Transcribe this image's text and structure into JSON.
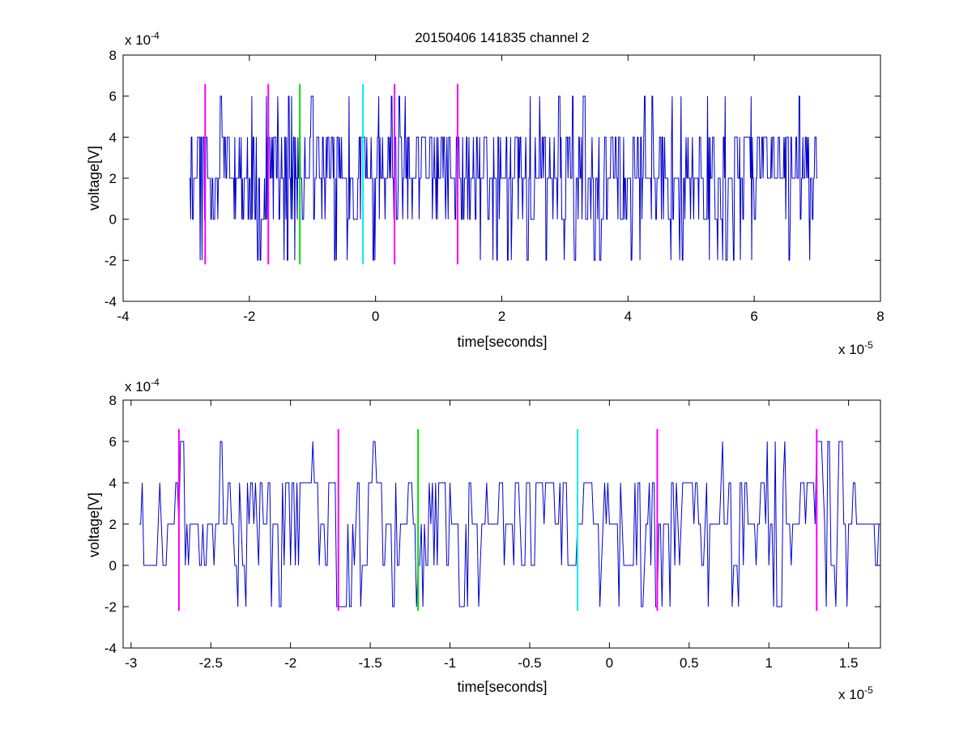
{
  "title": "20150406 141835 channel 2",
  "colors": {
    "signal": "#0000cc",
    "marker_magenta": "#ff00ff",
    "marker_green": "#00dd00",
    "marker_cyan": "#00eeee",
    "axis": "#000000"
  },
  "chart_data": [
    {
      "type": "line",
      "title": "20150406 141835 channel 2",
      "xlabel": "time[seconds]",
      "ylabel": "voltage[V]",
      "x_multiplier": "x 10",
      "x_exponent": "-5",
      "y_multiplier": "x 10",
      "y_exponent": "-4",
      "xlim": [
        -4,
        8
      ],
      "ylim": [
        -4,
        8
      ],
      "xticks": [
        -4,
        -2,
        0,
        2,
        4,
        6,
        8
      ],
      "xtick_labels": [
        "-4",
        "-2",
        "0",
        "2",
        "4",
        "6",
        "8"
      ],
      "yticks": [
        -4,
        -2,
        0,
        2,
        4,
        6,
        8
      ],
      "ytick_labels": [
        "-4",
        "-2",
        "0",
        "2",
        "4",
        "6",
        "8"
      ],
      "signal": {
        "x_range": [
          -2.95,
          7.0
        ],
        "step": 0.01,
        "levels": [
          -2,
          0,
          2,
          4,
          6
        ],
        "seed": 11,
        "weights": [
          0.06,
          0.2,
          0.42,
          0.28,
          0.04
        ]
      },
      "markers": [
        {
          "x": -2.7,
          "color": "magenta",
          "y_range": [
            -2.2,
            6.6
          ]
        },
        {
          "x": -1.7,
          "color": "magenta",
          "y_range": [
            -2.2,
            6.6
          ]
        },
        {
          "x": -1.2,
          "color": "green",
          "y_range": [
            -2.2,
            6.6
          ]
        },
        {
          "x": -0.2,
          "color": "cyan",
          "y_range": [
            -2.2,
            6.6
          ]
        },
        {
          "x": 0.3,
          "color": "magenta",
          "y_range": [
            -2.2,
            6.6
          ]
        },
        {
          "x": 1.3,
          "color": "magenta",
          "y_range": [
            -2.2,
            6.6
          ]
        }
      ]
    },
    {
      "type": "line",
      "title": "",
      "xlabel": "time[seconds]",
      "ylabel": "voltage[V]",
      "x_multiplier": "x 10",
      "x_exponent": "-5",
      "y_multiplier": "x 10",
      "y_exponent": "-4",
      "xlim": [
        -3.05,
        1.7
      ],
      "ylim": [
        -4,
        8
      ],
      "xticks": [
        -3,
        -2.5,
        -2,
        -1.5,
        -1,
        -0.5,
        0,
        0.5,
        1,
        1.5
      ],
      "xtick_labels": [
        "-3",
        "-2.5",
        "-2",
        "-1.5",
        "-1",
        "-0.5",
        "0",
        "0.5",
        "1",
        "1.5"
      ],
      "yticks": [
        -4,
        -2,
        0,
        2,
        4,
        6,
        8
      ],
      "ytick_labels": [
        "-4",
        "-2",
        "0",
        "2",
        "4",
        "6",
        "8"
      ],
      "signal": {
        "x_range": [
          -2.95,
          1.7
        ],
        "step": 0.01,
        "levels": [
          -2,
          0,
          2,
          4,
          6
        ],
        "seed": 23,
        "weights": [
          0.06,
          0.2,
          0.42,
          0.28,
          0.04
        ]
      },
      "markers": [
        {
          "x": -2.7,
          "color": "magenta",
          "y_range": [
            -2.2,
            6.6
          ]
        },
        {
          "x": -1.7,
          "color": "magenta",
          "y_range": [
            -2.2,
            6.6
          ]
        },
        {
          "x": -1.2,
          "color": "green",
          "y_range": [
            -2.2,
            6.6
          ]
        },
        {
          "x": -0.2,
          "color": "cyan",
          "y_range": [
            -2.2,
            6.6
          ]
        },
        {
          "x": 0.3,
          "color": "magenta",
          "y_range": [
            -2.2,
            6.6
          ]
        },
        {
          "x": 1.3,
          "color": "magenta",
          "y_range": [
            -2.2,
            6.6
          ]
        }
      ]
    }
  ]
}
